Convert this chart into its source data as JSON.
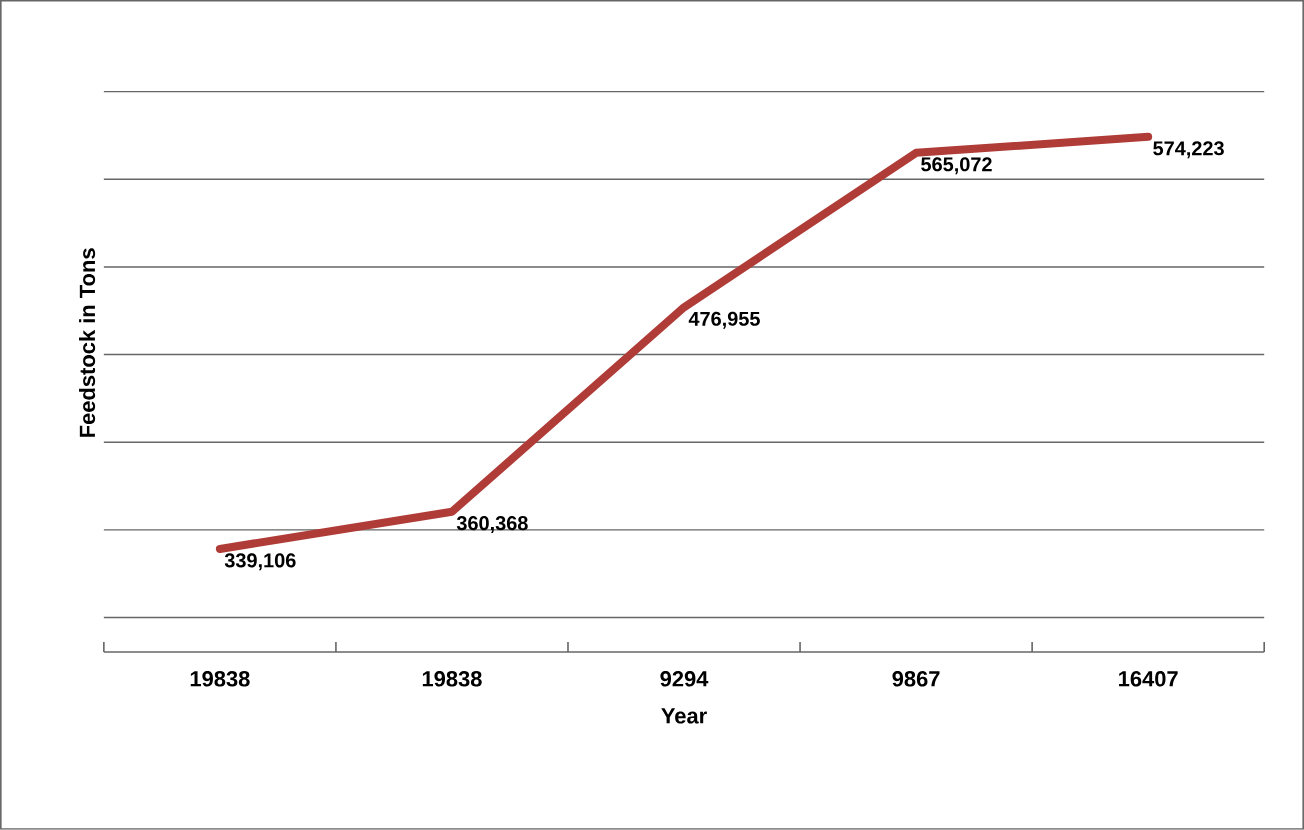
{
  "chart_data": {
    "type": "line",
    "xlabel": "Year",
    "ylabel": "Feedstock in Tons",
    "categories": [
      "19838",
      "19838",
      "9294",
      "9867",
      "16407"
    ],
    "values": [
      339106,
      360368,
      476955,
      565072,
      574223
    ],
    "value_labels": [
      "339,106",
      "360,368",
      "476,955",
      "565,072",
      "574,223"
    ],
    "color": "#b03c38",
    "tick_labels": "x",
    "grid": "y",
    "marker": "none",
    "line_style": "solid"
  }
}
